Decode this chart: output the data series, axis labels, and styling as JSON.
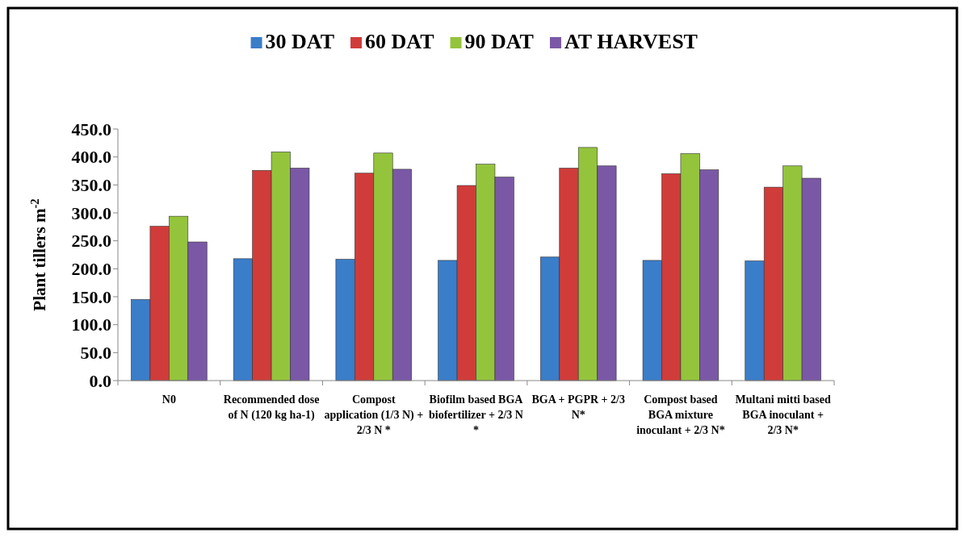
{
  "chart_data": {
    "type": "bar",
    "ylabel": "Plant tillers m$^{-2}$",
    "categories": [
      "N0",
      "Recommended dose of N (120 kg ha-1)",
      "Compost application (1/3 N) + 2/3 N *",
      "Biofilm based BGA biofertilizer + 2/3 N *",
      "BGA + PGPR + 2/3 N*",
      "Compost based BGA mixture inoculant + 2/3 N*",
      "Multani mitti based BGA inoculant + 2/3 N*"
    ],
    "series": [
      {
        "name": "30 DAT",
        "color": "#3a7dc9",
        "values": [
          145,
          218,
          217,
          215,
          221,
          215,
          214
        ]
      },
      {
        "name": "60 DAT",
        "color": "#d03c3a",
        "values": [
          276,
          376,
          371,
          349,
          380,
          370,
          346
        ]
      },
      {
        "name": "90 DAT",
        "color": "#94c43c",
        "values": [
          294,
          409,
          407,
          387,
          417,
          406,
          384
        ]
      },
      {
        "name": "AT HARVEST",
        "color": "#7a58a6",
        "values": [
          248,
          380,
          378,
          364,
          384,
          377,
          362
        ]
      }
    ],
    "ylim": [
      0,
      450
    ],
    "yticks": [
      {
        "value": 0,
        "label": "0.0"
      },
      {
        "value": 50,
        "label": "50.0"
      },
      {
        "value": 100,
        "label": "100.0"
      },
      {
        "value": 150,
        "label": "150.0"
      },
      {
        "value": 200,
        "label": "200.0"
      },
      {
        "value": 250,
        "label": "250.0"
      },
      {
        "value": 300,
        "label": "300.0"
      },
      {
        "value": 350,
        "label": "350.0"
      },
      {
        "value": 400,
        "label": "400.0"
      },
      {
        "value": 450,
        "label": "450.0"
      }
    ],
    "grid": false,
    "legend": "top"
  }
}
